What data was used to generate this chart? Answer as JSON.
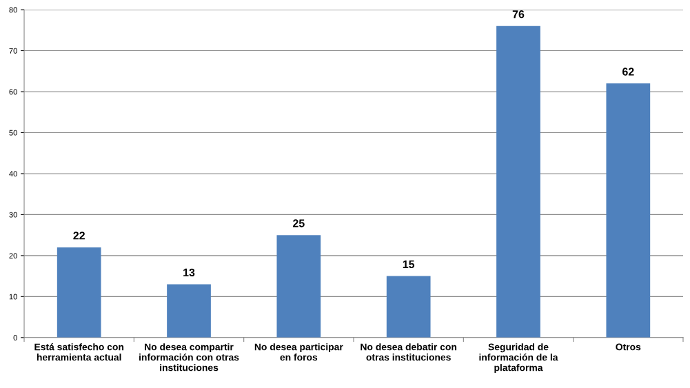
{
  "chart_data": {
    "type": "bar",
    "categories": [
      "Está satisfecho con\nherramienta actual",
      "No desea compartir\ninformación con otras\ninstituciones",
      "No desea participar\nen foros",
      "No desea debatir con\notras instituciones",
      "Seguridad de\ninformación de la\nplataforma",
      "Otros"
    ],
    "values": [
      22,
      13,
      25,
      15,
      76,
      62
    ],
    "color": "#4f81bd",
    "ylim": [
      0,
      80
    ],
    "yticks": [
      0,
      10,
      20,
      30,
      40,
      50,
      60,
      70,
      80
    ],
    "grid": "y",
    "data_labels": true
  }
}
